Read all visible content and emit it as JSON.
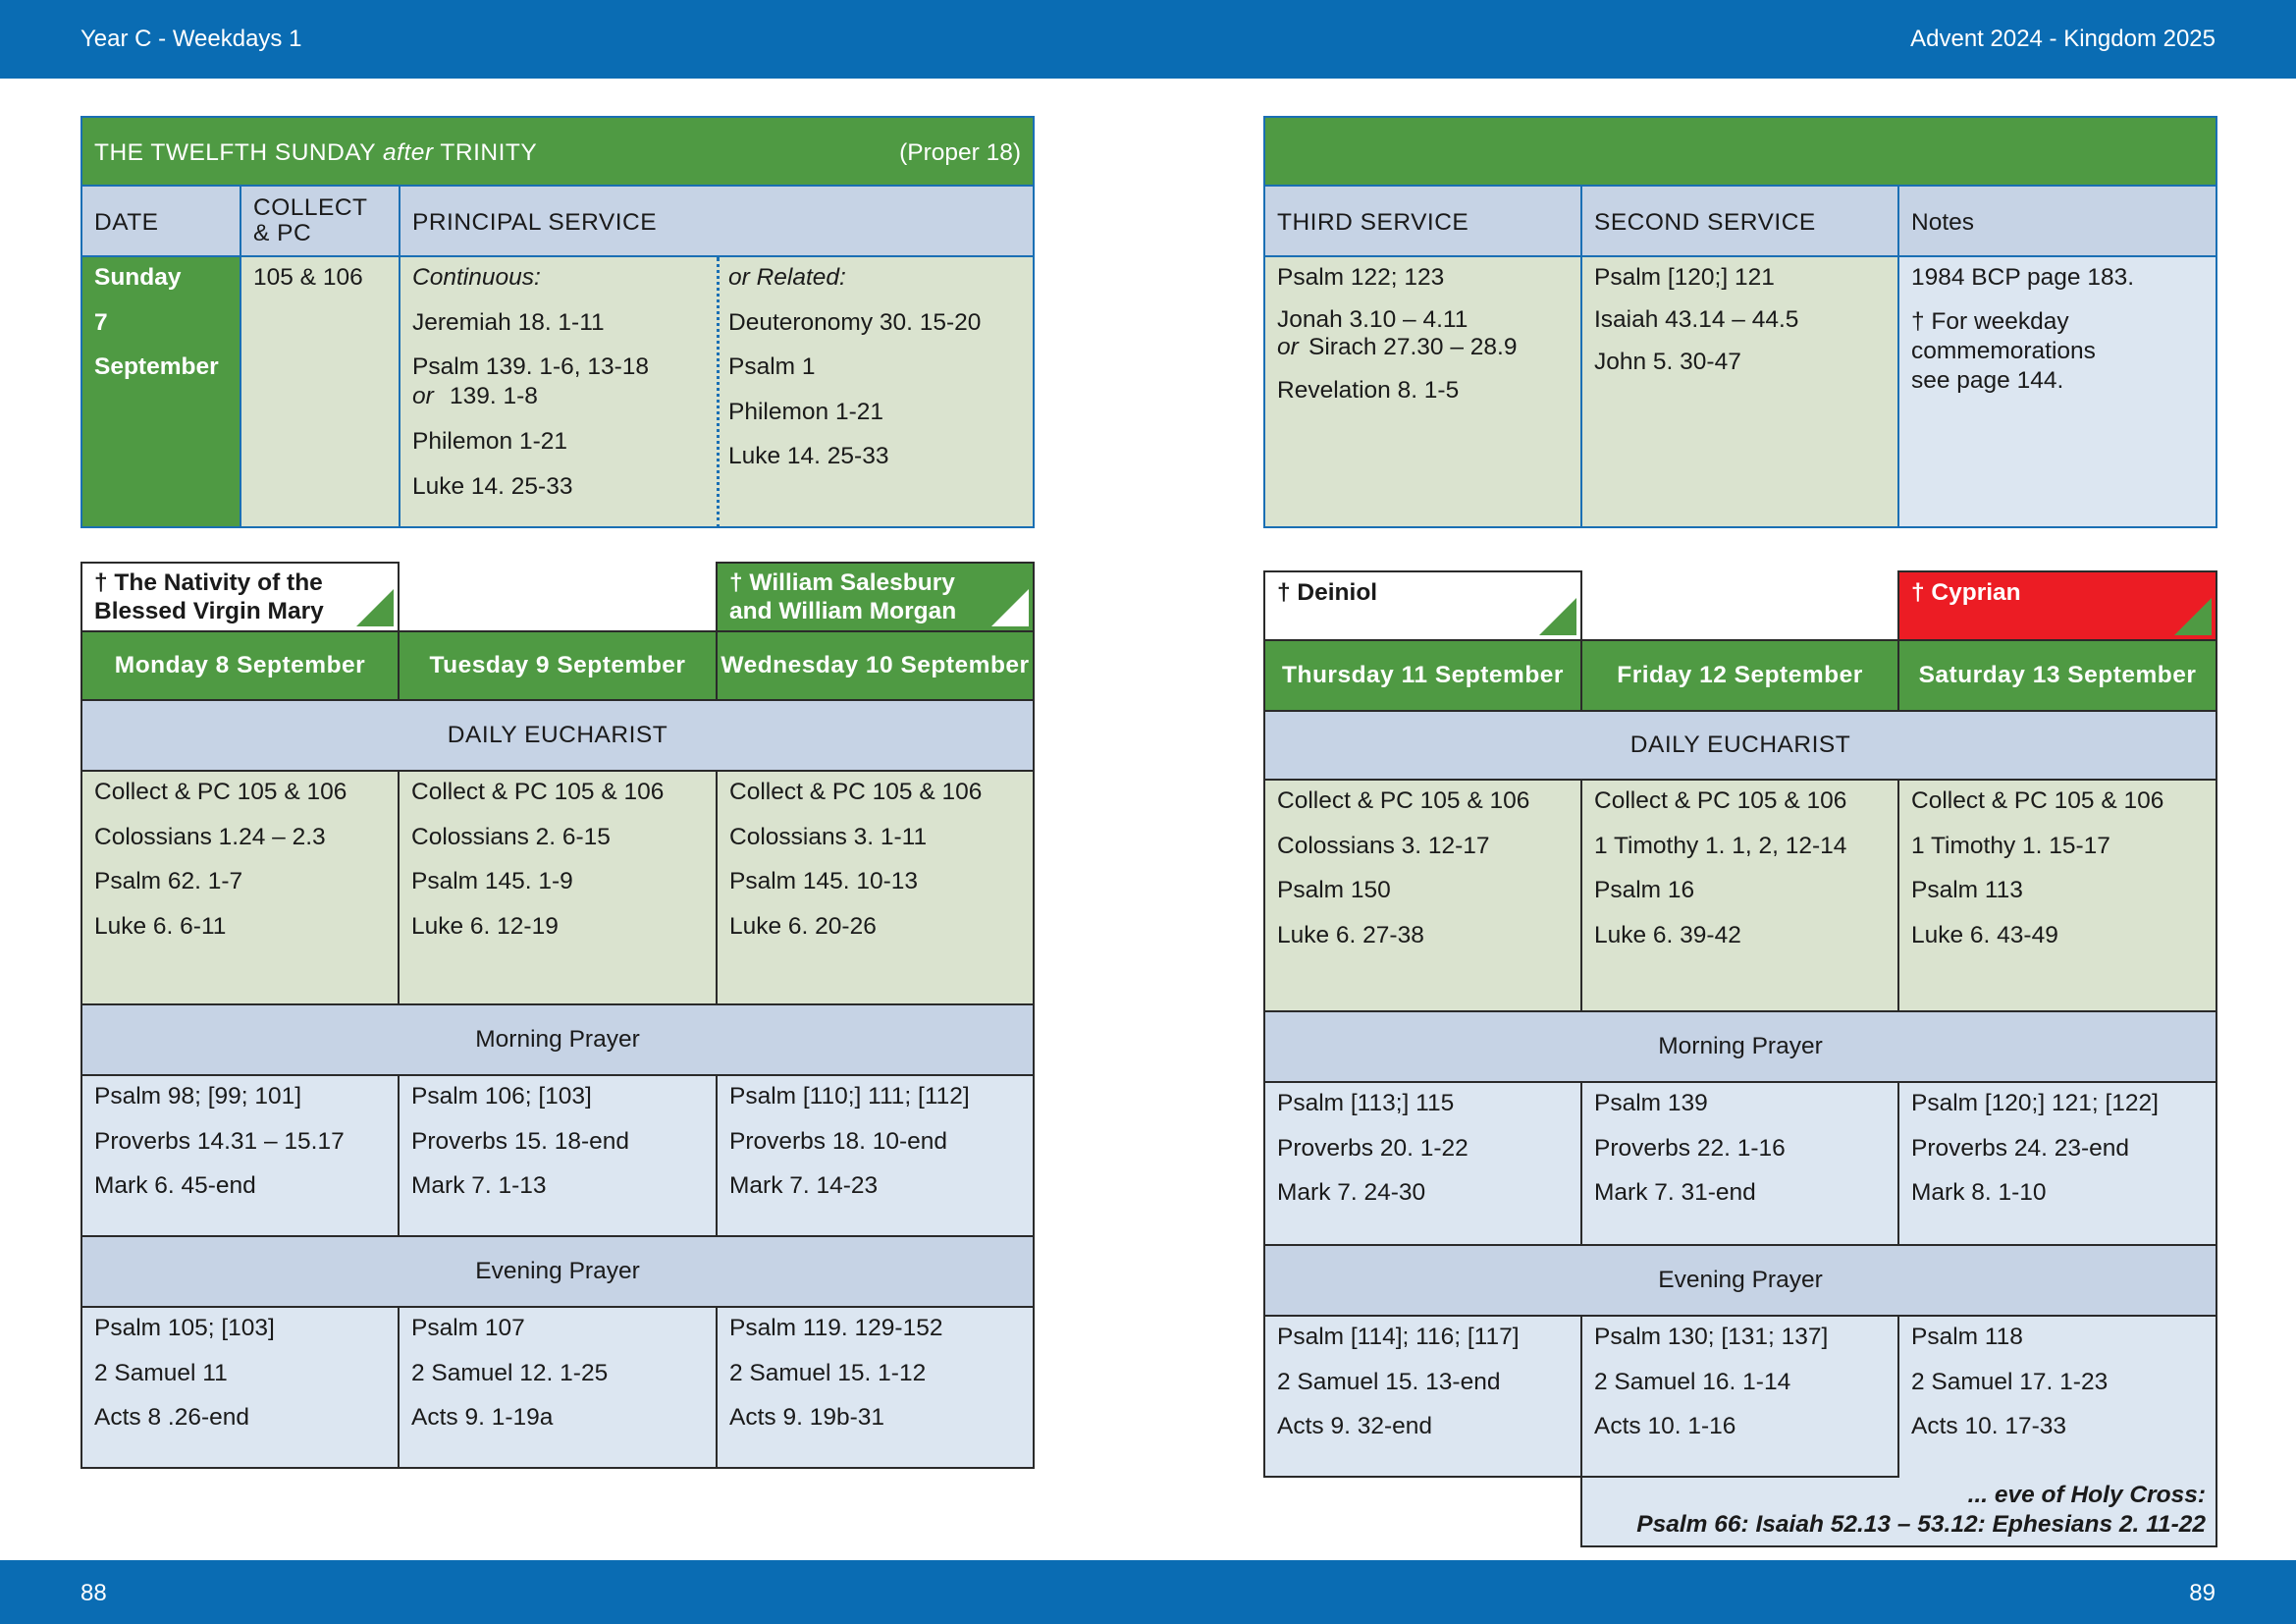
{
  "header": {
    "left": "Year C - Weekdays 1",
    "right": "Advent  2024 - Kingdom 2025"
  },
  "footer": {
    "left_page": "88",
    "right_page": "89"
  },
  "sunday": {
    "title_part1": "THE TWELFTH SUNDAY ",
    "title_after": "after",
    "title_part2": " TRINITY",
    "proper": "(Proper 18)",
    "col_date": "DATE",
    "col_collect_1": "COLLECT",
    "col_collect_2": "& PC",
    "col_principal": "PRINCIPAL SERVICE",
    "date": [
      "Sunday",
      "7",
      "September"
    ],
    "collect": "105 & 106",
    "continuous_label": "Continuous:",
    "continuous": [
      "Jeremiah 18. 1-11",
      "Psalm 139. 1-6, 13-18",
      "or",
      "139. 1-8",
      "Philemon 1-21",
      "Luke 14. 25-33"
    ],
    "related_label": "or Related:",
    "related": [
      "Deuteronomy 30. 15-20",
      "Psalm 1",
      "Philemon 1-21",
      "Luke 14. 25-33"
    ],
    "col_third": "THIRD SERVICE",
    "col_second": "SECOND SERVICE",
    "col_notes": "Notes",
    "third": [
      "Psalm 122; 123",
      "Jonah 3.10 – 4.11",
      "or",
      "Sirach 27.30 – 28.9",
      "Revelation 8. 1-5"
    ],
    "second": [
      "Psalm [120;] 121",
      "Isaiah 43.14 – 44.5",
      "John 5. 30-47"
    ],
    "notes": [
      "1984 BCP page 183.",
      "† For weekday",
      "commemorations",
      "see page 144."
    ]
  },
  "labels": {
    "daily_eucharist": "DAILY EUCHARIST",
    "morning_prayer": "Morning Prayer",
    "evening_prayer": "Evening Prayer"
  },
  "days_left": [
    {
      "commem": [
        "† The Nativity of the",
        "Blessed Virgin Mary"
      ],
      "day": "Monday 8 September",
      "eucharist": [
        "Collect & PC 105 & 106",
        "Colossians 1.24 – 2.3",
        "Psalm 62. 1-7",
        "Luke 6. 6-11"
      ],
      "morning": [
        "Psalm 98; [99; 101]",
        "Proverbs 14.31 – 15.17",
        "Mark 6. 45-end"
      ],
      "evening": [
        "Psalm 105; [103]",
        "2 Samuel 11",
        "Acts 8 .26-end"
      ]
    },
    {
      "commem": [],
      "day": "Tuesday 9 September",
      "eucharist": [
        "Collect & PC 105 & 106",
        "Colossians 2. 6-15",
        "Psalm 145. 1-9",
        "Luke 6. 12-19"
      ],
      "morning": [
        "Psalm 106; [103]",
        "Proverbs 15. 18-end",
        "Mark 7. 1-13"
      ],
      "evening": [
        "Psalm 107",
        "2 Samuel 12. 1-25",
        "Acts 9. 1-19a"
      ]
    },
    {
      "commem": [
        "† William Salesbury",
        "and William Morgan"
      ],
      "day": "Wednesday 10 September",
      "eucharist": [
        "Collect & PC 105 & 106",
        "Colossians 3. 1-11",
        "Psalm 145. 10-13",
        "Luke 6. 20-26"
      ],
      "morning": [
        "Psalm [110;] 111; [112]",
        "Proverbs 18. 10-end",
        "Mark 7. 14-23"
      ],
      "evening": [
        "Psalm 119. 129-152",
        "2 Samuel 15. 1-12",
        "Acts 9. 19b-31"
      ]
    }
  ],
  "days_right": [
    {
      "commem": [
        "† Deiniol"
      ],
      "day": "Thursday 11 September",
      "eucharist": [
        "Collect & PC 105 & 106",
        "Colossians 3. 12-17",
        "Psalm 150",
        "Luke 6. 27-38"
      ],
      "morning": [
        "Psalm [113;] 115",
        "Proverbs 20. 1-22",
        "Mark 7. 24-30"
      ],
      "evening": [
        "Psalm [114]; 116; [117]",
        "2 Samuel 15. 13-end",
        "Acts 9. 32-end"
      ]
    },
    {
      "commem": [],
      "day": "Friday 12 September",
      "eucharist": [
        "Collect & PC 105 & 106",
        "1 Timothy 1. 1, 2, 12-14",
        "Psalm 16",
        "Luke 6. 39-42"
      ],
      "morning": [
        "Psalm 139",
        "Proverbs 22. 1-16",
        "Mark 7. 31-end"
      ],
      "evening": [
        "Psalm 130; [131; 137]",
        "2 Samuel 16. 1-14",
        "Acts 10. 1-16"
      ]
    },
    {
      "commem": [
        "† Cyprian"
      ],
      "day": "Saturday 13 September",
      "eucharist": [
        "Collect & PC 105 & 106",
        "1 Timothy 1. 15-17",
        "Psalm 113",
        "Luke 6. 43-49"
      ],
      "morning": [
        "Psalm [120;] 121; [122]",
        "Proverbs 24. 23-end",
        "Mark 8. 1-10"
      ],
      "evening": [
        "Psalm 118",
        "2 Samuel 17. 1-23",
        "Acts 10. 17-33"
      ]
    }
  ],
  "eve": {
    "line1": "... eve of Holy Cross:",
    "line2": "Psalm 66:  Isaiah 52.13 – 53.12:  Ephesians 2. 11-22"
  },
  "colors": {
    "band_blue": "#0a6cb3",
    "liturgical_green": "#4f9a43",
    "martyr_red": "#ec1c24"
  }
}
